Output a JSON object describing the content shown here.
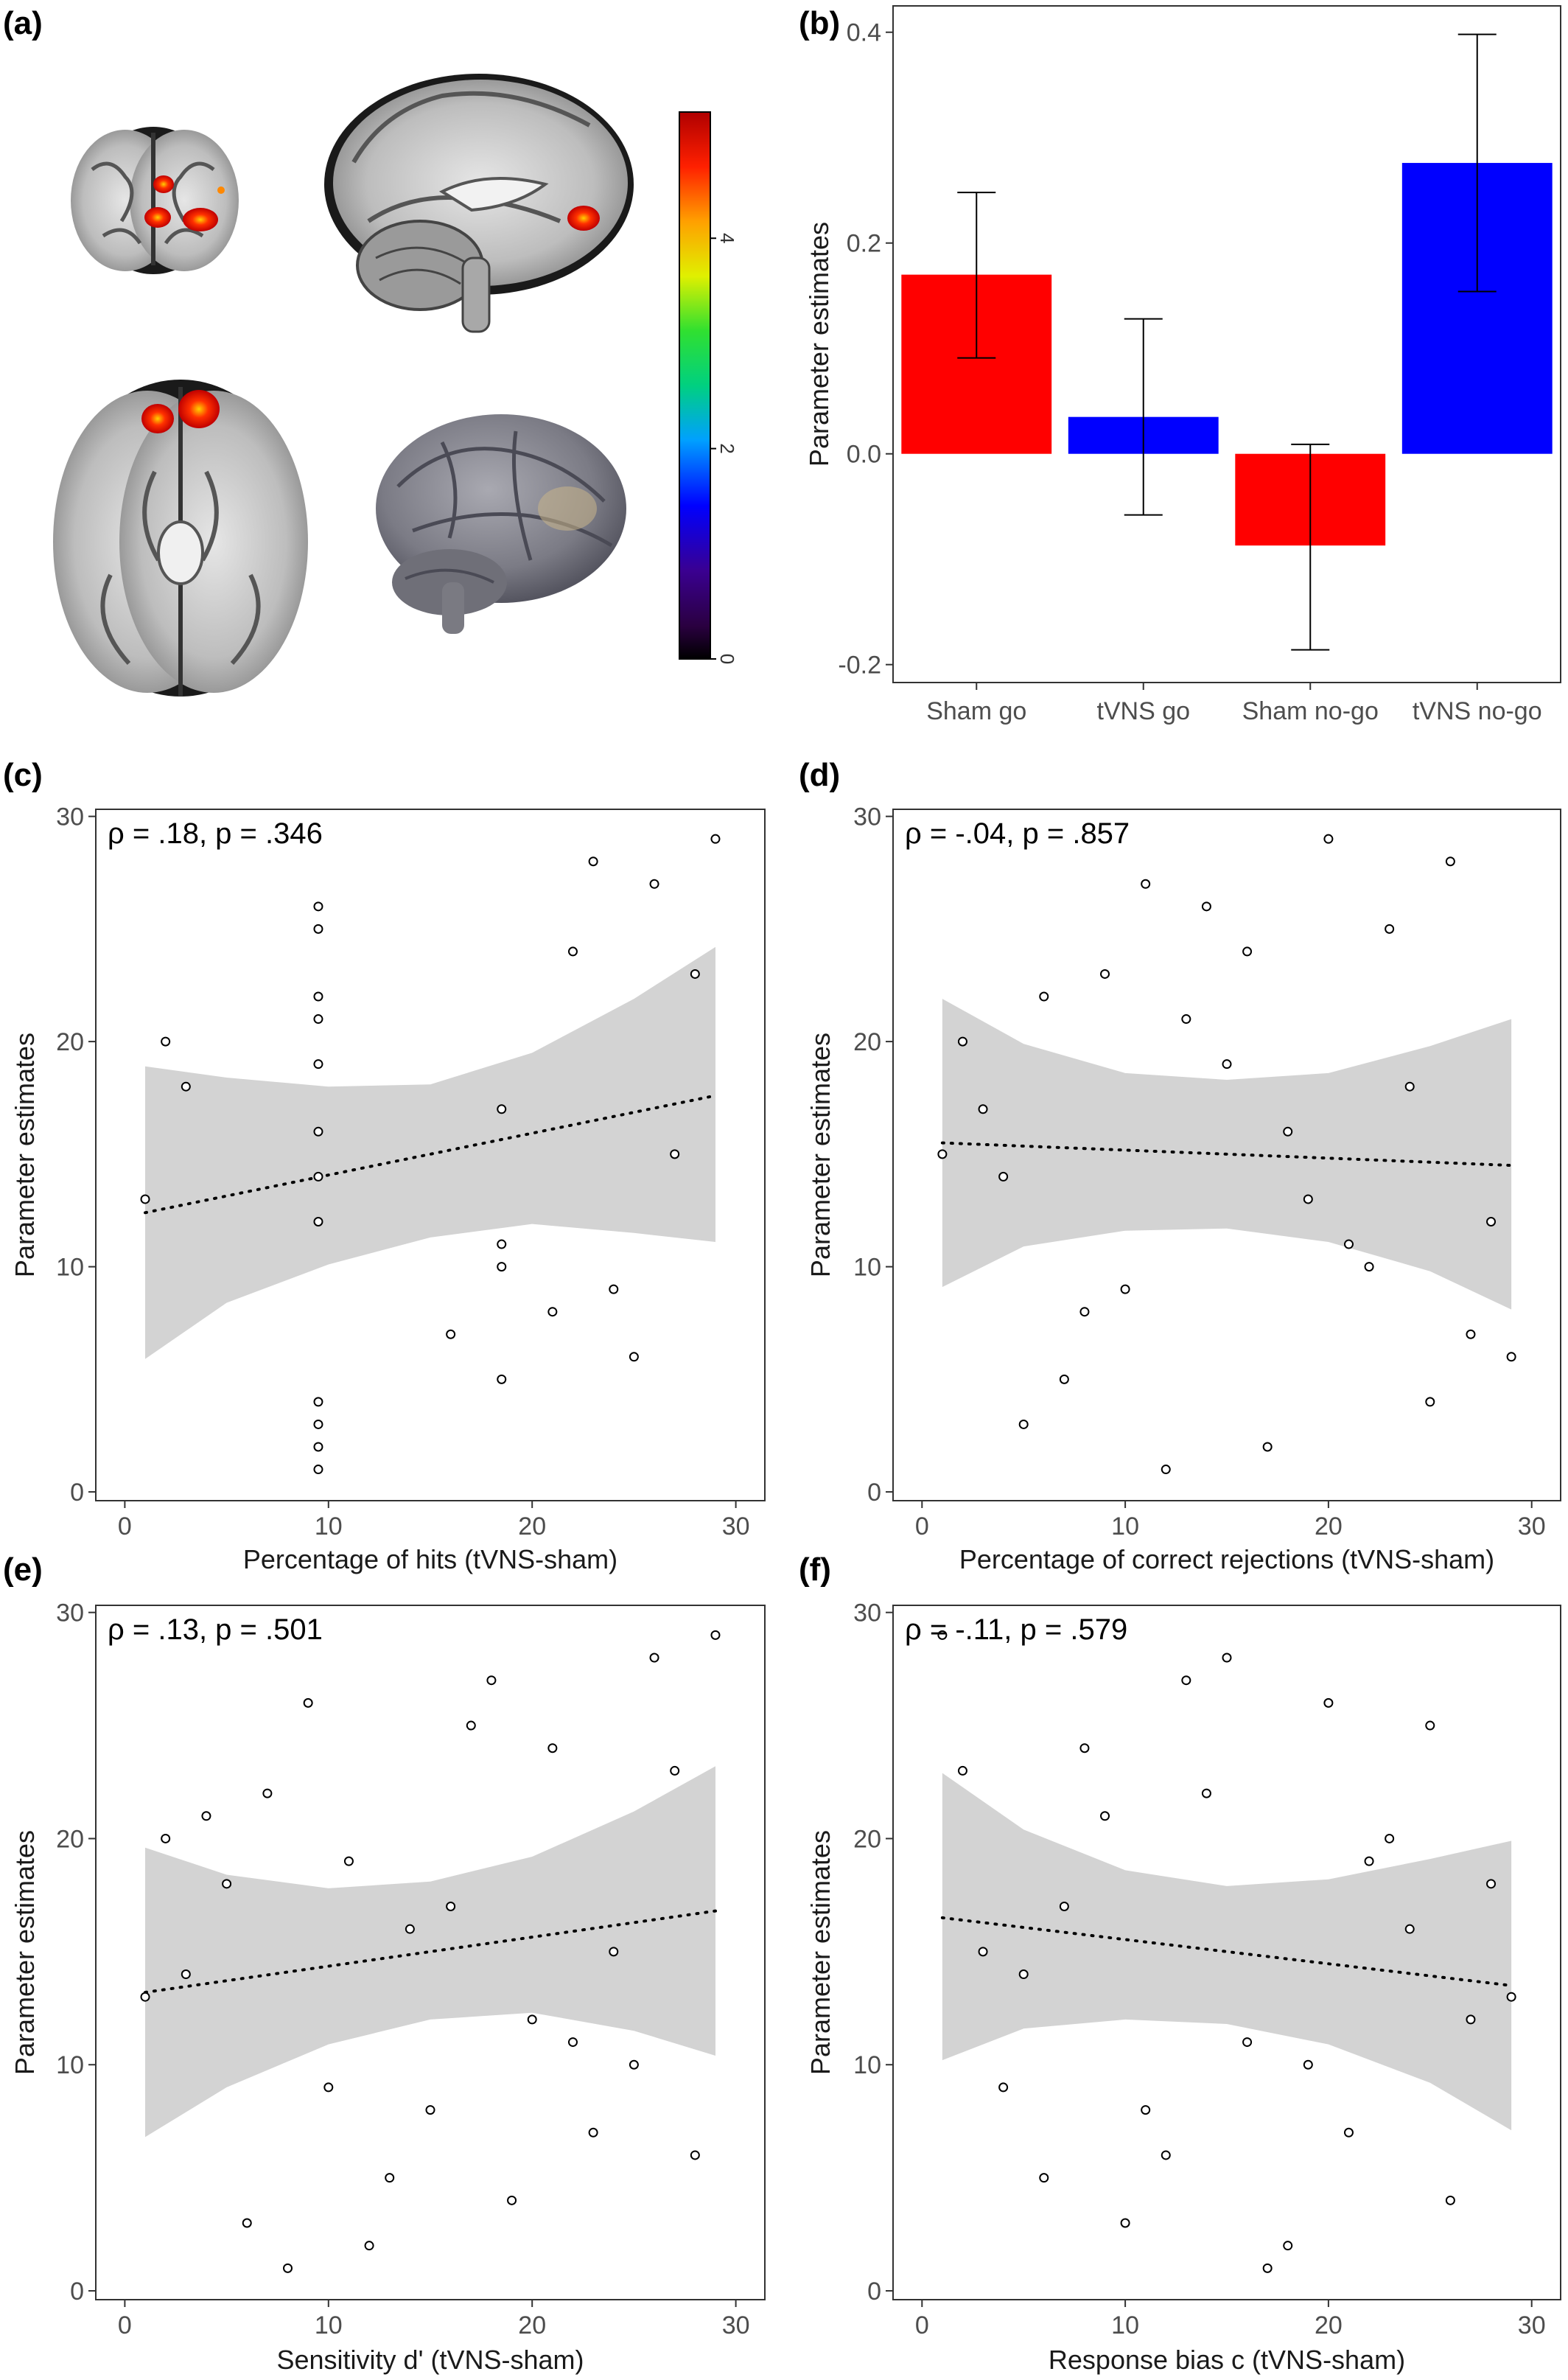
{
  "panel_labels": [
    "(a)",
    "(b)",
    "(c)",
    "(d)",
    "(e)",
    "(f)"
  ],
  "brain_panel": {
    "colorbar": {
      "ticks": [
        "0",
        "2",
        "4"
      ],
      "min": 0,
      "max": 5.2
    }
  },
  "chart_data": [
    {
      "id": "b",
      "type": "bar",
      "categories": [
        "Sham go",
        "tVNS go",
        "Sham no-go",
        "tVNS no-go"
      ],
      "values": [
        0.17,
        0.035,
        -0.087,
        0.276
      ],
      "error_low": [
        0.091,
        -0.058,
        -0.186,
        0.154
      ],
      "error_high": [
        0.248,
        0.128,
        0.009,
        0.398
      ],
      "colors": [
        "#ff0000",
        "#0000ff",
        "#ff0000",
        "#0000ff"
      ],
      "ylabel": "Parameter estimates",
      "xlabel": "",
      "ylim": [
        -0.2,
        0.4
      ],
      "yticks": [
        -0.2,
        0.0,
        0.2,
        0.4
      ],
      "ytick_labels": [
        "-0.2",
        "0.0",
        "0.2",
        "0.4"
      ],
      "grid": false
    },
    {
      "id": "c",
      "type": "scatter",
      "annotation": "ρ = .18, p = .346",
      "xlabel": "Percentage of hits (tVNS-sham)",
      "ylabel": "Parameter estimates",
      "xlim": [
        0,
        30
      ],
      "ylim": [
        0,
        30
      ],
      "xticks": [
        0,
        10,
        20,
        30
      ],
      "yticks": [
        0,
        10,
        20,
        30
      ],
      "points": [
        [
          1,
          13
        ],
        [
          2,
          20
        ],
        [
          3,
          18
        ],
        [
          9.5,
          26
        ],
        [
          9.5,
          25
        ],
        [
          9.5,
          22
        ],
        [
          9.5,
          21
        ],
        [
          9.5,
          19
        ],
        [
          9.5,
          16
        ],
        [
          9.5,
          14
        ],
        [
          9.5,
          12
        ],
        [
          9.5,
          4
        ],
        [
          9.5,
          3
        ],
        [
          9.5,
          2
        ],
        [
          9.5,
          1
        ],
        [
          16,
          7
        ],
        [
          18.5,
          17
        ],
        [
          18.5,
          11
        ],
        [
          18.5,
          10
        ],
        [
          18.5,
          5
        ],
        [
          21,
          8
        ],
        [
          22,
          24
        ],
        [
          23,
          28
        ],
        [
          24,
          9
        ],
        [
          25,
          6
        ],
        [
          26,
          27
        ],
        [
          27,
          15
        ],
        [
          28,
          23
        ],
        [
          29,
          29
        ]
      ],
      "fit": {
        "x": [
          1,
          29
        ],
        "y": [
          12.4,
          17.6
        ]
      },
      "band": {
        "x": [
          1,
          5,
          10,
          15,
          20,
          25,
          29
        ],
        "upper": [
          18.9,
          18.4,
          18.0,
          18.1,
          19.5,
          21.9,
          24.2
        ],
        "lower": [
          5.9,
          8.4,
          10.1,
          11.3,
          11.9,
          11.5,
          11.1
        ]
      },
      "grid": false
    },
    {
      "id": "d",
      "type": "scatter",
      "annotation": "ρ = -.04, p = .857",
      "xlabel": "Percentage of correct rejections (tVNS-sham)",
      "ylabel": "Parameter estimates",
      "xlim": [
        0,
        30
      ],
      "ylim": [
        0,
        30
      ],
      "xticks": [
        0,
        10,
        20,
        30
      ],
      "yticks": [
        0,
        10,
        20,
        30
      ],
      "points": [
        [
          1,
          15
        ],
        [
          2,
          20
        ],
        [
          3,
          17
        ],
        [
          4,
          14
        ],
        [
          5,
          3
        ],
        [
          6,
          22
        ],
        [
          7,
          5
        ],
        [
          8,
          8
        ],
        [
          9,
          23
        ],
        [
          10,
          9
        ],
        [
          11,
          27
        ],
        [
          12,
          1
        ],
        [
          13,
          21
        ],
        [
          14,
          26
        ],
        [
          15,
          19
        ],
        [
          16,
          24
        ],
        [
          17,
          2
        ],
        [
          18,
          16
        ],
        [
          19,
          13
        ],
        [
          20,
          29
        ],
        [
          21,
          11
        ],
        [
          22,
          10
        ],
        [
          23,
          25
        ],
        [
          24,
          18
        ],
        [
          25,
          4
        ],
        [
          26,
          28
        ],
        [
          27,
          7
        ],
        [
          28,
          12
        ],
        [
          29,
          6
        ]
      ],
      "fit": {
        "x": [
          1,
          29
        ],
        "y": [
          15.5,
          14.5
        ]
      },
      "band": {
        "x": [
          1,
          5,
          10,
          15,
          20,
          25,
          29
        ],
        "upper": [
          21.9,
          19.9,
          18.6,
          18.3,
          18.6,
          19.8,
          21.0
        ],
        "lower": [
          9.1,
          10.9,
          11.6,
          11.7,
          11.1,
          9.8,
          8.1
        ]
      },
      "grid": false
    },
    {
      "id": "e",
      "type": "scatter",
      "annotation": "ρ = .13, p = .501",
      "xlabel": "Sensitivity d' (tVNS-sham)",
      "ylabel": "Parameter estimates",
      "xlim": [
        0,
        30
      ],
      "ylim": [
        0,
        30
      ],
      "xticks": [
        0,
        10,
        20,
        30
      ],
      "yticks": [
        0,
        10,
        20,
        30
      ],
      "points": [
        [
          1,
          13
        ],
        [
          2,
          20
        ],
        [
          3,
          14
        ],
        [
          4,
          21
        ],
        [
          5,
          18
        ],
        [
          6,
          3
        ],
        [
          7,
          22
        ],
        [
          8,
          1
        ],
        [
          9,
          26
        ],
        [
          10,
          9
        ],
        [
          11,
          19
        ],
        [
          12,
          2
        ],
        [
          13,
          5
        ],
        [
          14,
          16
        ],
        [
          15,
          8
        ],
        [
          16,
          17
        ],
        [
          17,
          25
        ],
        [
          18,
          27
        ],
        [
          19,
          4
        ],
        [
          20,
          12
        ],
        [
          21,
          24
        ],
        [
          22,
          11
        ],
        [
          23,
          7
        ],
        [
          24,
          15
        ],
        [
          25,
          10
        ],
        [
          26,
          28
        ],
        [
          27,
          23
        ],
        [
          28,
          6
        ],
        [
          29,
          29
        ]
      ],
      "fit": {
        "x": [
          1,
          29
        ],
        "y": [
          13.2,
          16.8
        ]
      },
      "band": {
        "x": [
          1,
          5,
          10,
          15,
          20,
          25,
          29
        ],
        "upper": [
          19.6,
          18.4,
          17.8,
          18.1,
          19.2,
          21.2,
          23.2
        ],
        "lower": [
          6.8,
          9.0,
          10.9,
          12.0,
          12.3,
          11.5,
          10.4
        ]
      },
      "grid": false
    },
    {
      "id": "f",
      "type": "scatter",
      "annotation": "ρ = -.11, p = .579",
      "xlabel": "Response bias c (tVNS-sham)",
      "ylabel": "Parameter estimates",
      "xlim": [
        0,
        30
      ],
      "ylim": [
        0,
        30
      ],
      "xticks": [
        0,
        10,
        20,
        30
      ],
      "yticks": [
        0,
        10,
        20,
        30
      ],
      "points": [
        [
          1,
          29
        ],
        [
          2,
          23
        ],
        [
          3,
          15
        ],
        [
          4,
          9
        ],
        [
          5,
          14
        ],
        [
          6,
          5
        ],
        [
          7,
          17
        ],
        [
          8,
          24
        ],
        [
          9,
          21
        ],
        [
          10,
          3
        ],
        [
          11,
          8
        ],
        [
          12,
          6
        ],
        [
          13,
          27
        ],
        [
          14,
          22
        ],
        [
          15,
          28
        ],
        [
          16,
          11
        ],
        [
          17,
          1
        ],
        [
          18,
          2
        ],
        [
          19,
          10
        ],
        [
          20,
          26
        ],
        [
          21,
          7
        ],
        [
          22,
          19
        ],
        [
          23,
          20
        ],
        [
          24,
          16
        ],
        [
          25,
          25
        ],
        [
          26,
          4
        ],
        [
          27,
          12
        ],
        [
          28,
          18
        ],
        [
          29,
          13
        ]
      ],
      "fit": {
        "x": [
          1,
          29
        ],
        "y": [
          16.5,
          13.5
        ]
      },
      "band": {
        "x": [
          1,
          5,
          10,
          15,
          20,
          25,
          29
        ],
        "upper": [
          22.9,
          20.4,
          18.6,
          17.9,
          18.2,
          19.1,
          19.9
        ],
        "lower": [
          10.2,
          11.6,
          12.0,
          11.8,
          10.9,
          9.2,
          7.1
        ]
      },
      "grid": false
    }
  ]
}
